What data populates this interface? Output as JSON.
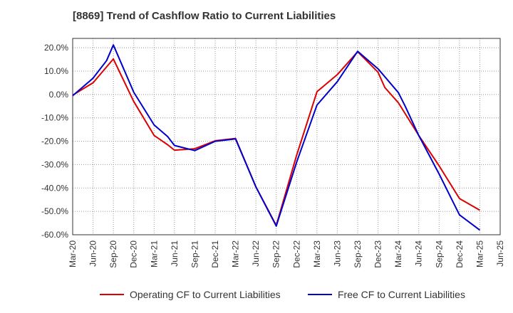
{
  "chart_data": {
    "type": "line",
    "title": "[8869]  Trend of Cashflow Ratio to Current Liabilities",
    "xlabel": "",
    "ylabel": "",
    "x_ticks": [
      "Mar-20",
      "Jun-20",
      "Sep-20",
      "Dec-20",
      "Mar-21",
      "Jun-21",
      "Sep-21",
      "Dec-21",
      "Mar-22",
      "Jun-22",
      "Sep-22",
      "Dec-22",
      "Mar-23",
      "Jun-23",
      "Sep-23",
      "Dec-23",
      "Mar-24",
      "Jun-24",
      "Sep-24",
      "Dec-24",
      "Mar-25",
      "Jun-25"
    ],
    "y_ticks": [
      "20.0%",
      "10.0%",
      "0.0%",
      "-10.0%",
      "-20.0%",
      "-30.0%",
      "-40.0%",
      "-50.0%",
      "-60.0%"
    ],
    "ylim": [
      -60,
      24
    ],
    "grid": true,
    "legend_position": "bottom",
    "series": [
      {
        "name": "Operating CF to Current Liabilities",
        "color": "#dd0000",
        "x": [
          "Mar-20",
          "Jun-20",
          "Sep-20",
          "Dec-20",
          "Mar-21",
          "Apr-21",
          "May-21",
          "Jun-21",
          "Sep-21",
          "Dec-21",
          "Mar-22",
          "Jun-22",
          "Sep-22",
          "Dec-22",
          "Mar-23",
          "Jun-23",
          "Sep-23",
          "Dec-23",
          "Jan-24",
          "Mar-24",
          "Jun-24",
          "Sep-24",
          "Dec-24",
          "Mar-25"
        ],
        "values": [
          -0.3,
          5.0,
          15.2,
          -3.0,
          -17.5,
          -19.5,
          -21.5,
          -23.8,
          -23.2,
          -19.8,
          -18.8,
          -39.5,
          -56.0,
          -26.0,
          1.2,
          8.5,
          18.3,
          9.5,
          3.0,
          -3.5,
          -17.5,
          -30.5,
          -44.5,
          -49.5
        ]
      },
      {
        "name": "Free CF to Current Liabilities",
        "color": "#0000cc",
        "x": [
          "Mar-20",
          "Jun-20",
          "Aug-20",
          "Sep-20",
          "Dec-20",
          "Mar-21",
          "May-21",
          "Jun-21",
          "Sep-21",
          "Dec-21",
          "Mar-22",
          "Jun-22",
          "Sep-22",
          "Dec-22",
          "Mar-23",
          "Jun-23",
          "Sep-23",
          "Dec-23",
          "Mar-24",
          "Apr-24",
          "Jun-24",
          "Sep-24",
          "Dec-24",
          "Mar-25"
        ],
        "values": [
          -0.5,
          7.0,
          14.5,
          21.2,
          1.0,
          -13.0,
          -18.0,
          -21.8,
          -24.0,
          -20.0,
          -19.0,
          -39.5,
          -56.3,
          -29.0,
          -4.5,
          5.5,
          18.5,
          11.0,
          0.8,
          -5.0,
          -17.5,
          -34.0,
          -51.5,
          -58.0
        ]
      }
    ]
  }
}
